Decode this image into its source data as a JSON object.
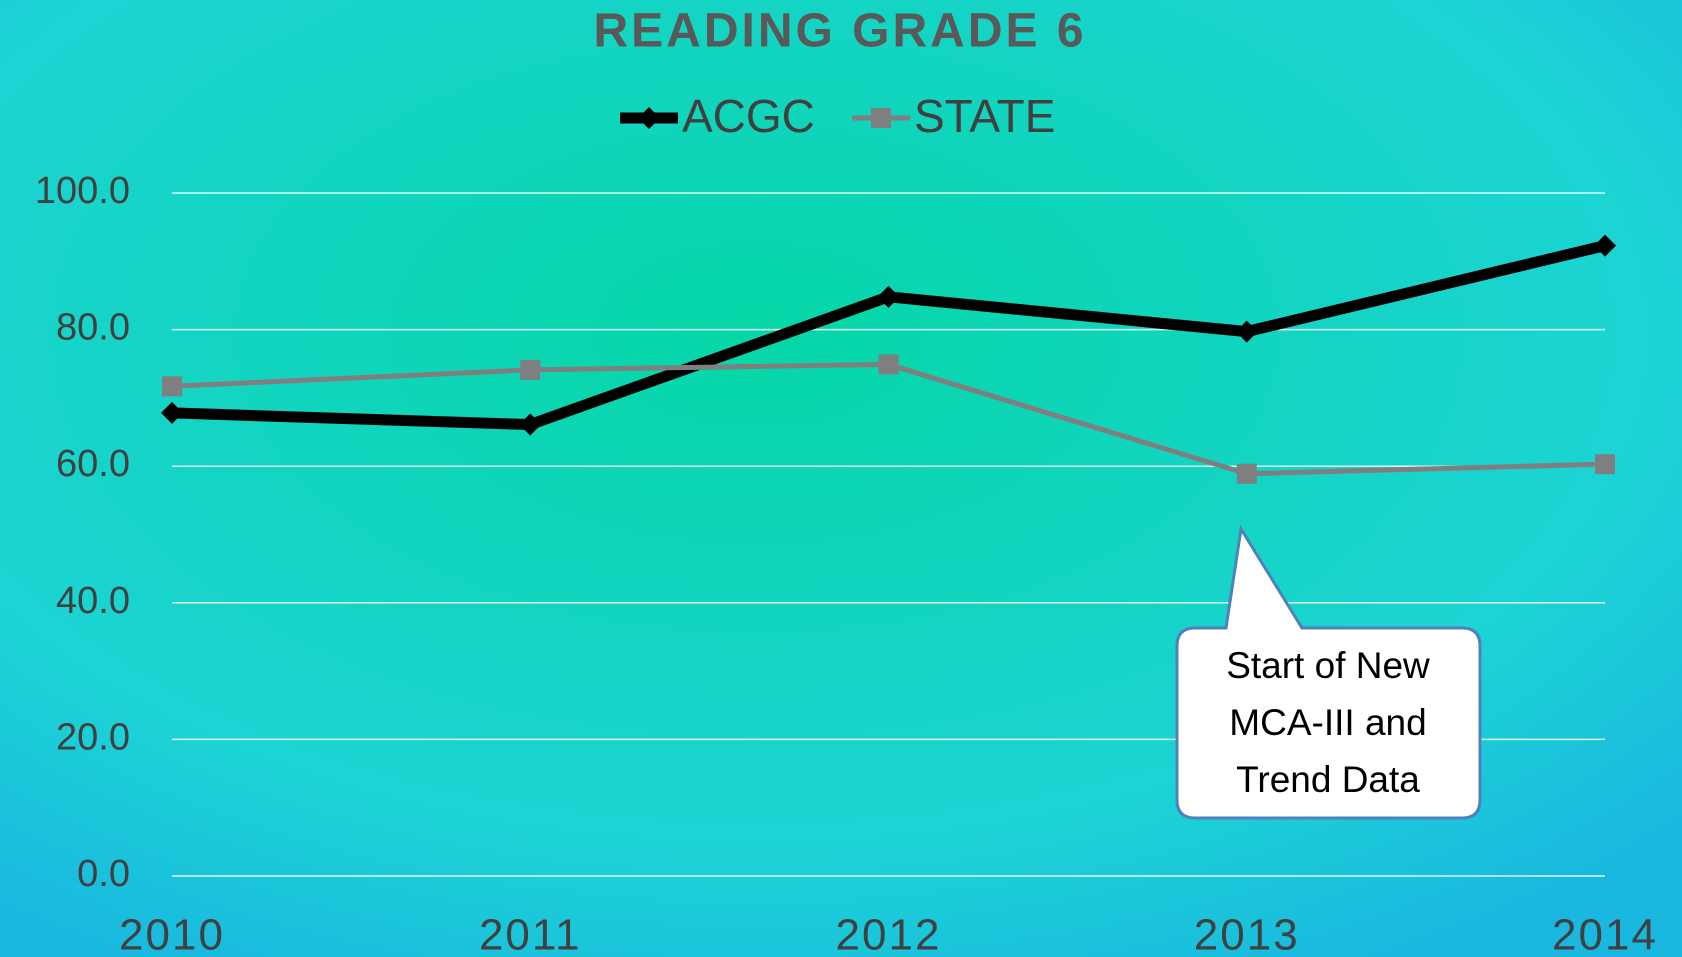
{
  "chart_data": {
    "type": "line",
    "title": "READING GRADE 6",
    "categories": [
      "2010",
      "2011",
      "2012",
      "2013",
      "2014"
    ],
    "series": [
      {
        "name": "ACGC",
        "color": "#000000",
        "values": [
          67.8,
          66.1,
          84.8,
          79.7,
          92.3
        ]
      },
      {
        "name": "STATE",
        "color": "#7f7f7f",
        "values": [
          71.7,
          74.1,
          74.9,
          58.9,
          60.3
        ]
      }
    ],
    "ylim": [
      0,
      100
    ],
    "yticks": [
      {
        "value": 0,
        "label": "0.0"
      },
      {
        "value": 20,
        "label": "20.0"
      },
      {
        "value": 40,
        "label": "40.0"
      },
      {
        "value": 60,
        "label": "60.0"
      },
      {
        "value": 80,
        "label": "80.0"
      },
      {
        "value": 100,
        "label": "100.0"
      }
    ],
    "grid": true,
    "legend": "top",
    "annotation": [
      "Start of New",
      "MCA-III and",
      "Trend Data"
    ]
  }
}
